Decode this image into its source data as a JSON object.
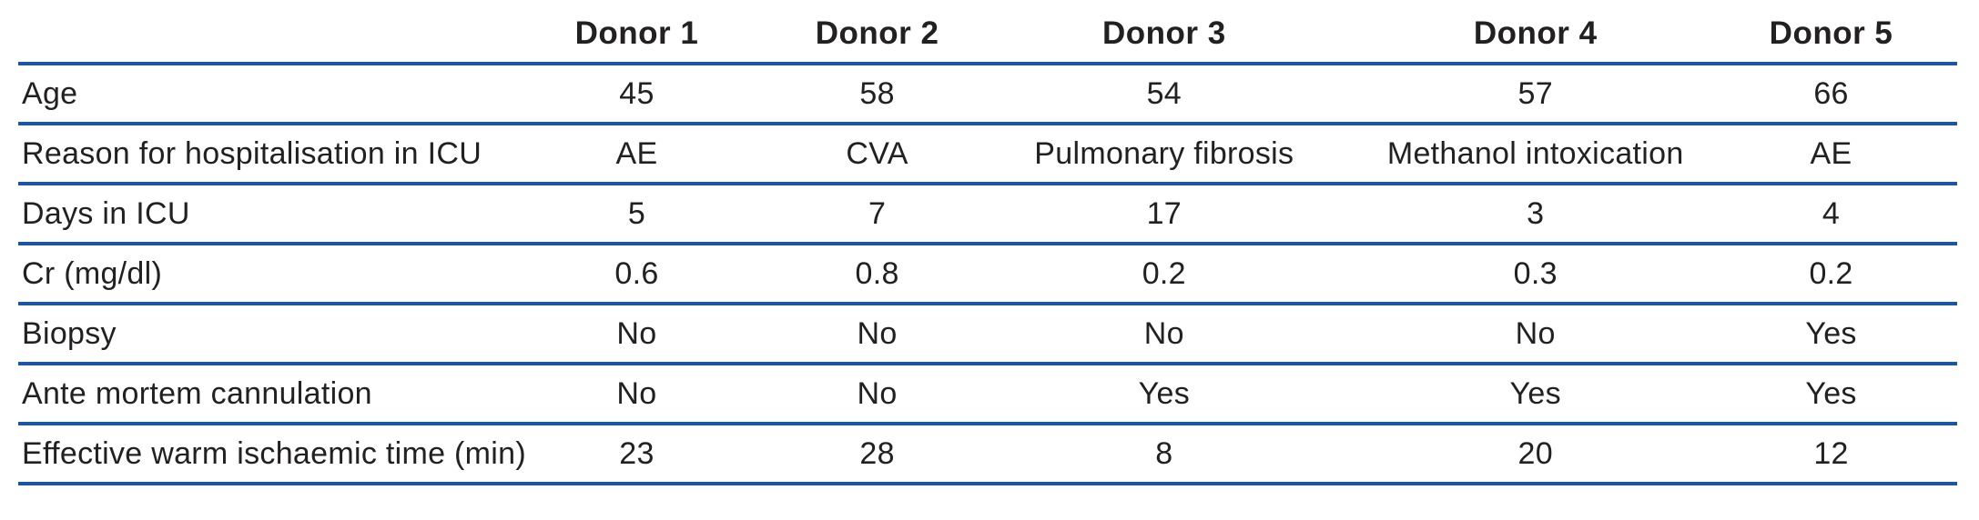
{
  "table": {
    "columns": [
      "",
      "Donor 1",
      "Donor 2",
      "Donor 3",
      "Donor 4",
      "Donor 5"
    ],
    "rows": [
      {
        "label": "Age",
        "values": [
          "45",
          "58",
          "54",
          "57",
          "66"
        ]
      },
      {
        "label": "Reason for hospitalisation in ICU",
        "values": [
          "AE",
          "CVA",
          "Pulmonary fibrosis",
          "Methanol intoxication",
          "AE"
        ]
      },
      {
        "label": "Days in ICU",
        "values": [
          "5",
          "7",
          "17",
          "3",
          "4"
        ]
      },
      {
        "label": "Cr (mg/dl)",
        "values": [
          "0.6",
          "0.8",
          "0.2",
          "0.3",
          "0.2"
        ]
      },
      {
        "label": "Biopsy",
        "values": [
          "No",
          "No",
          "No",
          "No",
          "Yes"
        ]
      },
      {
        "label": "Ante mortem cannulation",
        "values": [
          "No",
          "No",
          "Yes",
          "Yes",
          "Yes"
        ]
      },
      {
        "label": "Effective warm ischaemic time (min)",
        "values": [
          "23",
          "28",
          "8",
          "20",
          "12"
        ]
      }
    ]
  },
  "colors": {
    "rule_blue": "#1b55a5",
    "text": "#232021",
    "background": "#ffffff"
  }
}
